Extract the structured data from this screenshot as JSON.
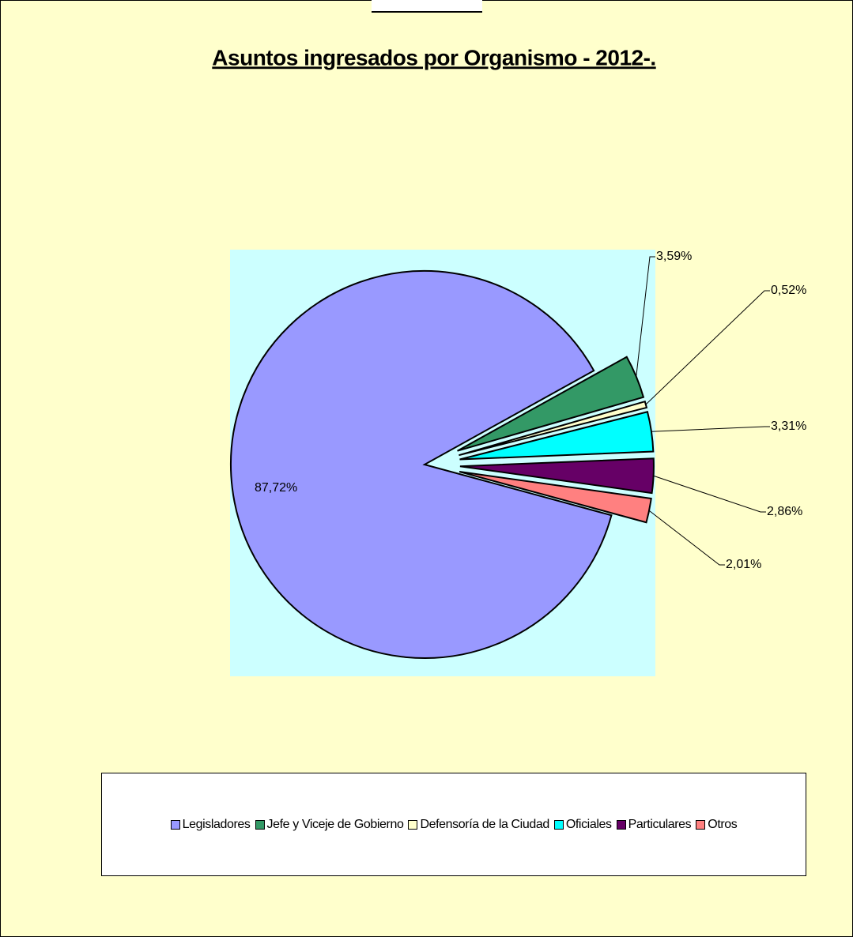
{
  "chart_data": {
    "type": "pie",
    "title": "Asuntos ingresados por Organismo - 2012-.",
    "categories": [
      "Legisladores",
      "Jefe y Viceje de Gobierno",
      "Defensoría de la Ciudad",
      "Oficiales",
      "Particulares",
      "Otros"
    ],
    "values": [
      87.72,
      3.59,
      0.52,
      3.31,
      2.86,
      2.01
    ],
    "value_labels": [
      "87,72%",
      "3,59%",
      "0,52%",
      "3,31%",
      "2,86%",
      "2,01%"
    ],
    "colors": [
      "#9999ff",
      "#339966",
      "#ffffcc",
      "#00ffff",
      "#660066",
      "#ff8080"
    ],
    "legend": "bottom"
  }
}
